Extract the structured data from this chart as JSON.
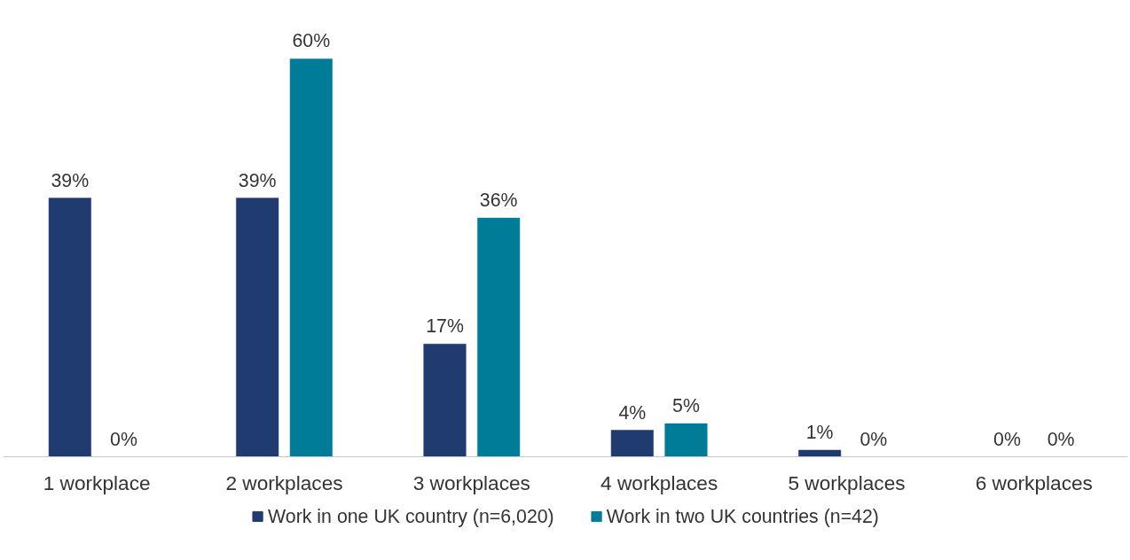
{
  "chart_data": {
    "type": "bar",
    "categories": [
      "1 workplace",
      "2 workplaces",
      "3 workplaces",
      "4 workplaces",
      "5 workplaces",
      "6 workplaces"
    ],
    "series": [
      {
        "name": "Work in one UK country (n=6,020)",
        "color": "#1f3b70",
        "values": [
          39,
          39,
          17,
          4,
          1,
          0
        ],
        "value_labels": [
          "39%",
          "39%",
          "17%",
          "4%",
          "1%",
          "0%"
        ]
      },
      {
        "name": "Work in two UK countries (n=42)",
        "color": "#007c99",
        "values": [
          0,
          60,
          36,
          5,
          0,
          0
        ],
        "value_labels": [
          "0%",
          "60%",
          "36%",
          "5%",
          "0%",
          "0%"
        ]
      }
    ],
    "tick_labels": "x",
    "grid": false,
    "legend": "bottom"
  }
}
